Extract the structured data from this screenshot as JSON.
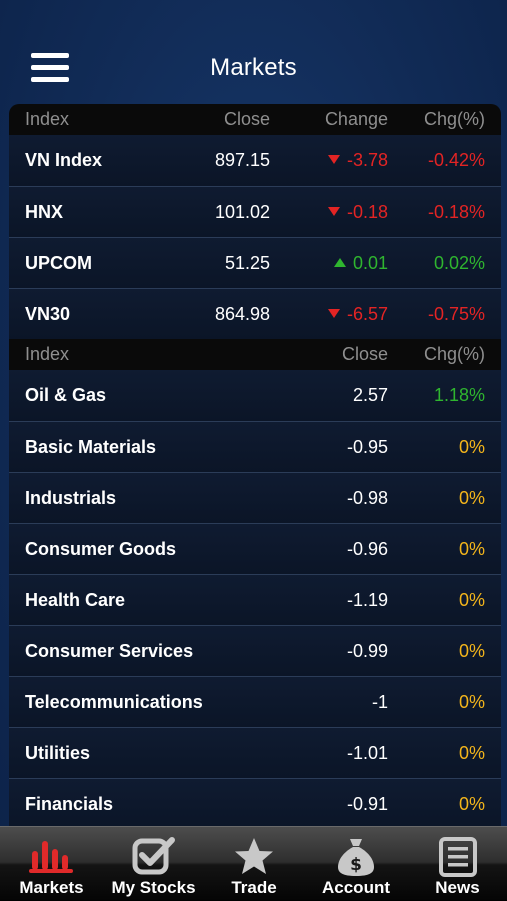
{
  "header": {
    "title": "Markets"
  },
  "indices": {
    "headers": {
      "name": "Index",
      "close": "Close",
      "change": "Change",
      "pct": "Chg(%)"
    },
    "rows": [
      {
        "name": "VN Index",
        "close": "897.15",
        "change": "-3.78",
        "pct": "-0.42%",
        "dir": "down"
      },
      {
        "name": "HNX",
        "close": "101.02",
        "change": "-0.18",
        "pct": "-0.18%",
        "dir": "down"
      },
      {
        "name": "UPCOM",
        "close": "51.25",
        "change": "0.01",
        "pct": "0.02%",
        "dir": "up"
      },
      {
        "name": "VN30",
        "close": "864.98",
        "change": "-6.57",
        "pct": "-0.75%",
        "dir": "down"
      }
    ]
  },
  "sectors": {
    "headers": {
      "name": "Index",
      "close": "Close",
      "pct": "Chg(%)"
    },
    "rows": [
      {
        "name": "Oil & Gas",
        "close": "2.57",
        "pct": "1.18%",
        "dir": "up"
      },
      {
        "name": "Basic Materials",
        "close": "-0.95",
        "pct": "0%",
        "dir": "zero"
      },
      {
        "name": "Industrials",
        "close": "-0.98",
        "pct": "0%",
        "dir": "zero"
      },
      {
        "name": "Consumer Goods",
        "close": "-0.96",
        "pct": "0%",
        "dir": "zero"
      },
      {
        "name": "Health Care",
        "close": "-1.19",
        "pct": "0%",
        "dir": "zero"
      },
      {
        "name": "Consumer Services",
        "close": "-0.99",
        "pct": "0%",
        "dir": "zero"
      },
      {
        "name": "Telecommunications",
        "close": "-1",
        "pct": "0%",
        "dir": "zero"
      },
      {
        "name": "Utilities",
        "close": "-1.01",
        "pct": "0%",
        "dir": "zero"
      },
      {
        "name": "Financials",
        "close": "-0.91",
        "pct": "0%",
        "dir": "zero"
      }
    ]
  },
  "tabs": [
    {
      "label": "Markets",
      "icon": "bar-chart-icon",
      "active": true
    },
    {
      "label": "My Stocks",
      "icon": "checkbox-icon",
      "active": false
    },
    {
      "label": "Trade",
      "icon": "star-icon",
      "active": false
    },
    {
      "label": "Account",
      "icon": "money-bag-icon",
      "active": false
    },
    {
      "label": "News",
      "icon": "news-icon",
      "active": false
    }
  ],
  "colors": {
    "down": "#e32424",
    "up": "#2fb52f",
    "zero": "#f3b51b",
    "active_tab": "#e02a2a",
    "inactive_tab": "#c8c8c8"
  }
}
